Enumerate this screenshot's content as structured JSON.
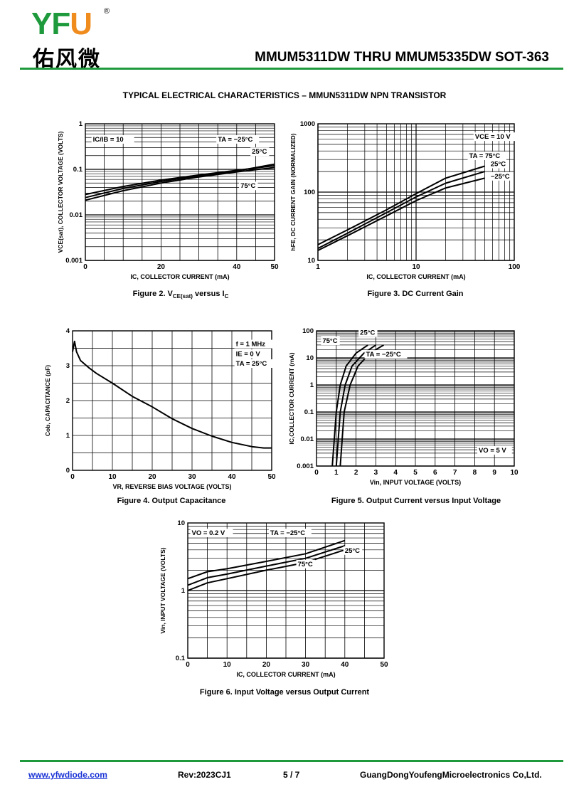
{
  "header": {
    "logo_letters": [
      "YF",
      "U"
    ],
    "logo_reg": "®",
    "logo_cn": "佑风微",
    "doc_title": "MMUM5311DW THRU MMUM5335DW SOT-363",
    "accent_color": "#1e9a3c",
    "logo_orange": "#f08c1e"
  },
  "section_title": "TYPICAL ELECTRICAL CHARACTERISTICS – MMUN5311DW NPN TRANSISTOR",
  "figures": [
    {
      "caption": "Figure 2. VCE(sat) versus IC",
      "chart_data": {
        "type": "line",
        "xlabel": "IC, COLLECTOR CURRENT (mA)",
        "ylabel": "VCE(sat), COLLECTOR VOLTAGE (VOLTS)",
        "xlim": [
          0,
          50
        ],
        "ylim": [
          0.001,
          1
        ],
        "yscale": "log",
        "xticks": [
          "0",
          "20",
          "40",
          "50"
        ],
        "yticks": [
          "0.001",
          "0.01",
          "0.1",
          "1"
        ],
        "annotations": [
          "IC/IB = 10",
          "TA = −25°C",
          "25°C",
          "75°C"
        ],
        "series": [
          {
            "name": "TA = −25°C",
            "x": [
              0,
              10,
              20,
              30,
              40,
              50
            ],
            "y": [
              0.028,
              0.042,
              0.058,
              0.075,
              0.095,
              0.12
            ]
          },
          {
            "name": "25°C",
            "x": [
              0,
              10,
              20,
              30,
              40,
              50
            ],
            "y": [
              0.024,
              0.038,
              0.054,
              0.072,
              0.092,
              0.13
            ]
          },
          {
            "name": "75°C",
            "x": [
              0,
              10,
              20,
              30,
              40,
              50
            ],
            "y": [
              0.021,
              0.034,
              0.05,
              0.068,
              0.088,
              0.11
            ]
          }
        ]
      }
    },
    {
      "caption": "Figure 3. DC Current Gain",
      "chart_data": {
        "type": "line",
        "xlabel": "IC, COLLECTOR CURRENT (mA)",
        "ylabel": "hFE, DC CURRENT GAIN (NORMALIZED)",
        "xlim": [
          1,
          100
        ],
        "ylim": [
          10,
          1000
        ],
        "xscale": "log",
        "yscale": "log",
        "xticks": [
          "1",
          "10",
          "100"
        ],
        "yticks": [
          "10",
          "100",
          "1000"
        ],
        "annotations": [
          "VCE = 10 V",
          "TA = 75°C",
          "25°C",
          "−25°C"
        ],
        "series": [
          {
            "name": "TA = 75°C",
            "x": [
              1,
              2,
              5,
              10,
              20,
              50
            ],
            "y": [
              17,
              28,
              55,
              95,
              160,
              240
            ]
          },
          {
            "name": "25°C",
            "x": [
              1,
              2,
              5,
              10,
              20,
              50
            ],
            "y": [
              15,
              25,
              50,
              85,
              135,
              200
            ]
          },
          {
            "name": "−25°C",
            "x": [
              1,
              2,
              5,
              10,
              20,
              50
            ],
            "y": [
              14,
              23,
              45,
              75,
              115,
              160
            ]
          }
        ]
      }
    },
    {
      "caption": "Figure 4. Output Capacitance",
      "chart_data": {
        "type": "line",
        "xlabel": "VR, REVERSE BIAS VOLTAGE (VOLTS)",
        "ylabel": "Cob, CAPACITANCE (pF)",
        "xlim": [
          0,
          50
        ],
        "ylim": [
          0,
          4
        ],
        "xticks": [
          "0",
          "10",
          "20",
          "30",
          "40",
          "50"
        ],
        "yticks": [
          "0",
          "1",
          "2",
          "3",
          "4"
        ],
        "annotations": [
          "f = 1 MHz",
          "IE = 0 V",
          "TA = 25°C"
        ],
        "series": [
          {
            "x": [
              0,
              0.5,
              1,
              2,
              4,
              6,
              10,
              15,
              20,
              25,
              30,
              35,
              40,
              45,
              48,
              50
            ],
            "y": [
              3.4,
              3.7,
              3.4,
              3.15,
              2.95,
              2.78,
              2.5,
              2.12,
              1.82,
              1.48,
              1.2,
              0.98,
              0.8,
              0.68,
              0.64,
              0.64
            ]
          }
        ]
      }
    },
    {
      "caption": "Figure 5. Output Current versus Input Voltage",
      "chart_data": {
        "type": "line",
        "xlabel": "Vin, INPUT VOLTAGE (VOLTS)",
        "ylabel": "IC,COLLECTOR CURRENT (mA)",
        "xlim": [
          0,
          10
        ],
        "ylim": [
          0.001,
          100
        ],
        "yscale": "log",
        "xticks": [
          "0",
          "1",
          "2",
          "3",
          "4",
          "5",
          "6",
          "7",
          "8",
          "9",
          "10"
        ],
        "yticks": [
          "0.001",
          "0.01",
          "0.1",
          "1",
          "10",
          "100"
        ],
        "annotations": [
          "25°C",
          "75°C",
          "TA = −25°C",
          "VO = 5 V"
        ],
        "series": [
          {
            "name": "75°C",
            "x": [
              0.8,
              0.9,
              1.0,
              1.2,
              1.5,
              2.0,
              2.6
            ],
            "y": [
              0.001,
              0.01,
              0.1,
              1,
              5,
              15,
              30
            ]
          },
          {
            "name": "25°C",
            "x": [
              1.0,
              1.1,
              1.2,
              1.45,
              1.8,
              2.4,
              3.0
            ],
            "y": [
              0.001,
              0.01,
              0.1,
              1,
              5,
              15,
              30
            ]
          },
          {
            "name": "TA = −25°C",
            "x": [
              1.2,
              1.3,
              1.4,
              1.7,
              2.1,
              2.7,
              3.4
            ],
            "y": [
              0.001,
              0.01,
              0.1,
              1,
              5,
              15,
              30
            ]
          }
        ]
      }
    },
    {
      "caption": "Figure 6. Input Voltage versus Output Current",
      "chart_data": {
        "type": "line",
        "xlabel": "IC, COLLECTOR CURRENT (mA)",
        "ylabel": "Vin, INPUT VOLTAGE (VOLTS)",
        "xlim": [
          0,
          50
        ],
        "ylim": [
          0.1,
          10
        ],
        "yscale": "log",
        "xticks": [
          "0",
          "10",
          "20",
          "30",
          "40",
          "50"
        ],
        "yticks": [
          "0.1",
          "1",
          "10"
        ],
        "annotations": [
          "VO = 0.2 V",
          "TA = −25°C",
          "25°C",
          "75°C"
        ],
        "series": [
          {
            "name": "TA = −25°C",
            "x": [
              0,
              5,
              10,
              20,
              30,
              40
            ],
            "y": [
              1.5,
              1.9,
              2.1,
              2.7,
              3.5,
              5.5
            ]
          },
          {
            "name": "25°C",
            "x": [
              0,
              5,
              10,
              20,
              30,
              40
            ],
            "y": [
              1.2,
              1.55,
              1.75,
              2.3,
              3.0,
              4.6
            ]
          },
          {
            "name": "75°C",
            "x": [
              0,
              5,
              10,
              20,
              30,
              40
            ],
            "y": [
              1.0,
              1.3,
              1.5,
              2.0,
              2.6,
              4.0
            ]
          }
        ]
      }
    }
  ],
  "footer": {
    "website": "www.yfwdiode.com",
    "rev": "Rev:2023CJ1",
    "page": "5 / 7",
    "company": "GuangDongYoufengMicroelectronics Co,Ltd."
  }
}
